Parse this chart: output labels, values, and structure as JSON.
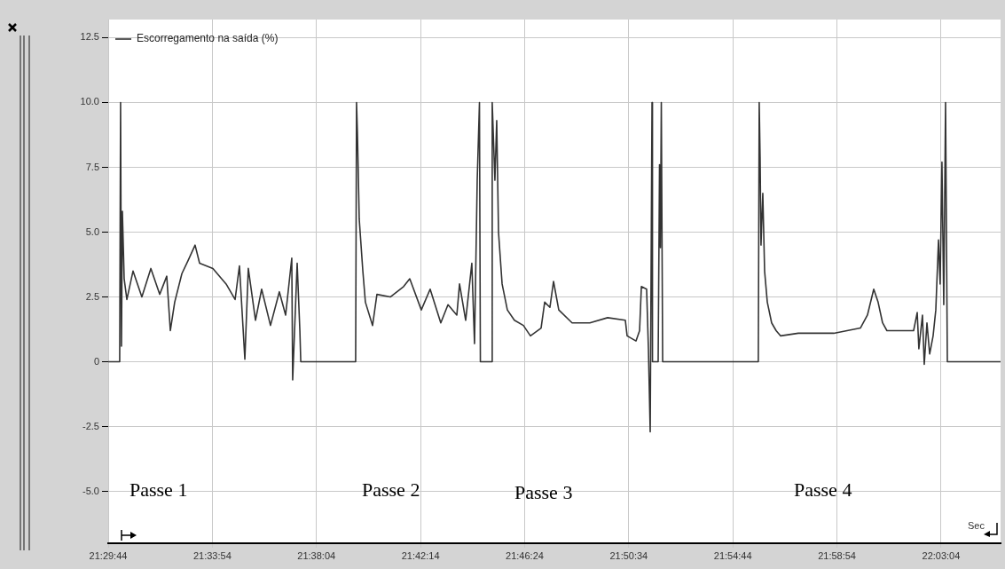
{
  "chart_data": {
    "type": "line",
    "legend": "top left",
    "grid": true,
    "marker": "none",
    "line_style": "solid",
    "xlim": [
      21.495556,
      22.0908
    ],
    "ylim": [
      -7,
      13.2
    ],
    "xticks": [
      {
        "value": 21.495556,
        "label": "21:29:44"
      },
      {
        "value": 21.565,
        "label": "21:33:54"
      },
      {
        "value": 21.634444,
        "label": "21:38:04"
      },
      {
        "value": 21.703889,
        "label": "21:42:14"
      },
      {
        "value": 21.773333,
        "label": "21:46:24"
      },
      {
        "value": 21.842778,
        "label": "21:50:34"
      },
      {
        "value": 21.912222,
        "label": "21:54:44"
      },
      {
        "value": 21.981667,
        "label": "21:58:54"
      },
      {
        "value": 22.051111,
        "label": "22:03:04"
      }
    ],
    "yticks": [
      {
        "value": -5,
        "label": "-5.0"
      },
      {
        "value": -2.5,
        "label": "-2.5"
      },
      0,
      {
        "value": 2.5,
        "label": "2.5"
      },
      {
        "value": 5,
        "label": "5.0"
      },
      {
        "value": 7.5,
        "label": "7.5"
      },
      {
        "value": 10,
        "label": "10.0"
      },
      {
        "value": 12.5,
        "label": "12.5"
      }
    ],
    "annotations": [
      "Passe 1",
      "Passe 2",
      "Passe 3",
      "Passe 4",
      "Sec"
    ],
    "series": [
      {
        "name": "Escorregamento na saída (%)",
        "color": "#333333",
        "x": [
          21.4956,
          21.5032,
          21.5035,
          21.5038,
          21.5044,
          21.505,
          21.5062,
          21.508,
          21.5121,
          21.518,
          21.524,
          21.5299,
          21.5346,
          21.537,
          21.5399,
          21.5447,
          21.5488,
          21.5535,
          21.5565,
          21.5654,
          21.5742,
          21.5802,
          21.5831,
          21.5867,
          21.589,
          21.5938,
          21.5979,
          21.6038,
          21.6097,
          21.6139,
          21.618,
          21.6186,
          21.6216,
          21.6234,
          21.6237,
          21.624,
          21.6606,
          21.6609,
          21.6612,
          21.6618,
          21.663,
          21.6654,
          21.6671,
          21.6719,
          21.6748,
          21.6837,
          21.6926,
          21.6967,
          21.7044,
          21.7103,
          21.7174,
          21.7222,
          21.7281,
          21.7299,
          21.734,
          21.7381,
          21.7399,
          21.7417,
          21.7432,
          21.7435,
          21.7438,
          21.7512,
          21.7515,
          21.7517,
          21.7535,
          21.7547,
          21.7559,
          21.7583,
          21.7618,
          21.7665,
          21.7725,
          21.7772,
          21.7843,
          21.7867,
          21.7902,
          21.7926,
          21.7961,
          21.805,
          21.8168,
          21.8287,
          21.8405,
          21.8417,
          21.8476,
          21.85,
          21.8512,
          21.8547,
          21.8559,
          21.8571,
          21.8577,
          21.8583,
          21.8586,
          21.8624,
          21.8627,
          21.8633,
          21.8639,
          21.8645,
          21.8651,
          21.8654,
          21.9292,
          21.9295,
          21.9298,
          21.9304,
          21.931,
          21.9322,
          21.9334,
          21.9352,
          21.9381,
          21.9411,
          21.944,
          21.9559,
          21.9795,
          21.9973,
          22.002,
          22.0062,
          22.0091,
          22.0121,
          22.015,
          22.0328,
          22.0352,
          22.0363,
          22.0387,
          22.0399,
          22.0417,
          22.0435,
          22.0458,
          22.0476,
          22.0494,
          22.0505,
          22.0517,
          22.0529,
          22.0541,
          22.0547,
          22.0553,
          22.0908
        ],
        "values": [
          0,
          0,
          null,
          10,
          0.6,
          5.8,
          3.2,
          2.4,
          3.5,
          2.5,
          3.6,
          2.6,
          3.3,
          1.2,
          2.3,
          3.4,
          3.9,
          4.5,
          3.8,
          3.6,
          3,
          2.4,
          3.7,
          0.1,
          3.6,
          1.6,
          2.8,
          1.4,
          2.7,
          1.8,
          4,
          -0.7,
          3.8,
          1.2,
          null,
          0,
          0,
          null,
          10,
          8.8,
          5.5,
          3.5,
          2.3,
          1.4,
          2.6,
          2.5,
          2.9,
          3.2,
          2,
          2.8,
          1.5,
          2.2,
          1.8,
          3,
          1.6,
          3.8,
          0.7,
          7,
          10,
          null,
          0,
          0,
          null,
          10,
          7,
          9.3,
          5,
          3,
          2,
          1.6,
          1.4,
          1,
          1.3,
          2.3,
          2.1,
          3.1,
          2,
          1.5,
          1.5,
          1.7,
          1.6,
          1,
          0.8,
          1.2,
          2.9,
          2.8,
          0.5,
          -2.7,
          null,
          10,
          0,
          0,
          null,
          7.6,
          4.4,
          10,
          null,
          0,
          0,
          null,
          10,
          7.9,
          4.5,
          6.5,
          3.5,
          2.3,
          1.5,
          1.2,
          1,
          1.1,
          1.1,
          1.3,
          1.8,
          2.8,
          2.3,
          1.5,
          1.2,
          1.2,
          1.9,
          0.5,
          1.8,
          -0.1,
          1.5,
          0.3,
          1,
          2,
          4.7,
          3,
          7.7,
          2.2,
          10,
          null,
          0,
          0
        ]
      }
    ]
  }
}
